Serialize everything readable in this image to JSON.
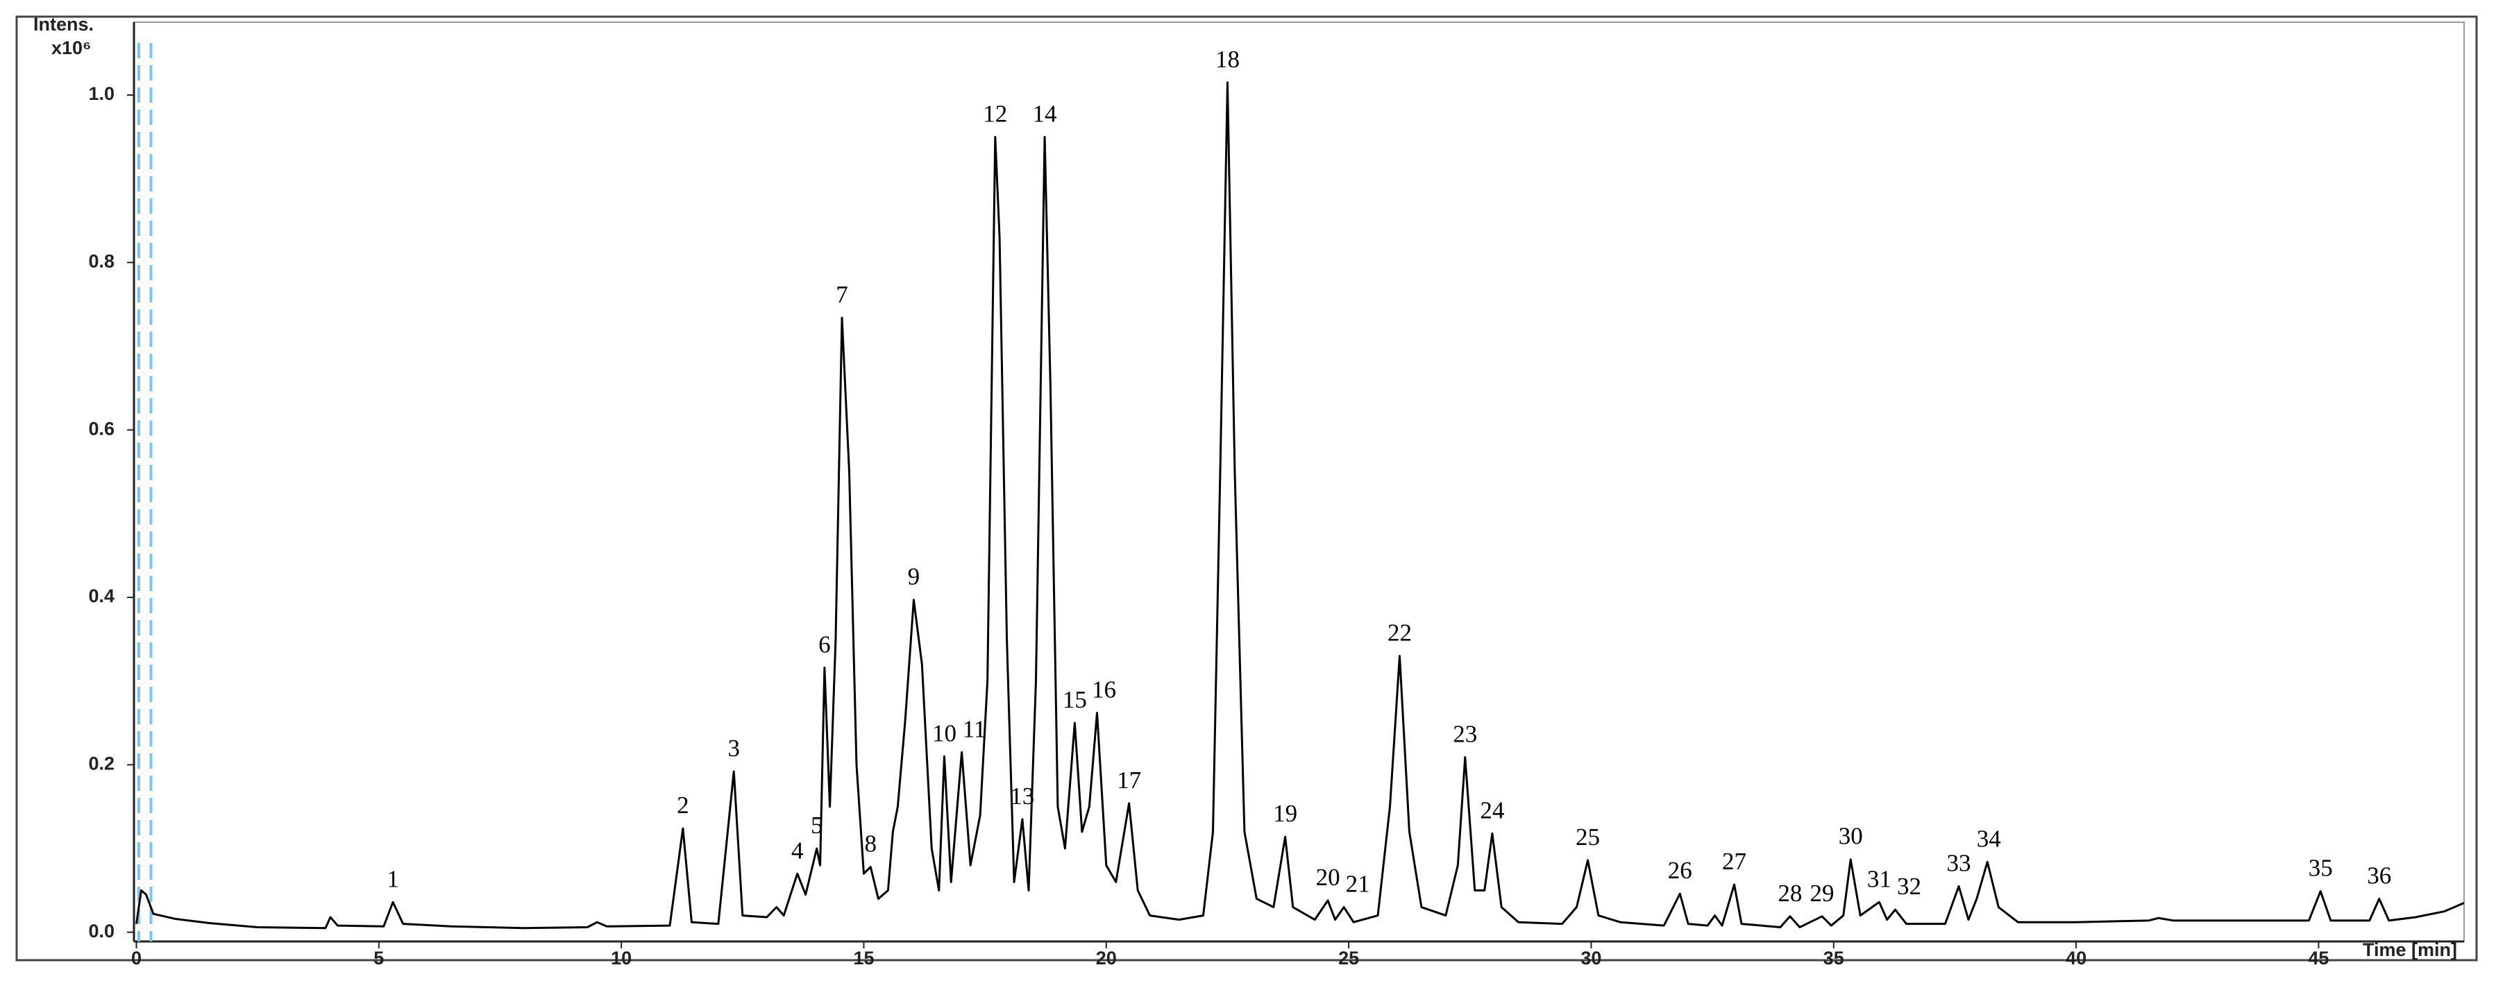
{
  "chart_data": {
    "type": "line",
    "y_label": "Intens.",
    "y_unit": "x10⁶",
    "x_label": "Time [min]",
    "color": "#000000",
    "marker_color": "#7ec4e8",
    "markers_x": [
      0.05,
      0.3
    ],
    "xlim": [
      -0.05,
      48.0
    ],
    "ylim": [
      -0.011,
      1.087
    ],
    "xticks": [
      0,
      5,
      10,
      15,
      20,
      25,
      30,
      35,
      40,
      45
    ],
    "yticks": [
      {
        "value": 0,
        "label": "0.0"
      },
      0.2,
      0.4,
      0.6,
      0.8,
      {
        "value": 1,
        "label": "1.0"
      }
    ],
    "x": [
      0,
      0.1,
      0.2,
      0.35,
      0.8,
      1.5,
      2.5,
      3.9,
      4.0,
      4.15,
      5.1,
      5.29,
      5.5,
      6.5,
      8.0,
      9.3,
      9.5,
      9.7,
      11.0,
      11.27,
      11.45,
      12.0,
      12.32,
      12.5,
      13.0,
      13.2,
      13.35,
      13.63,
      13.8,
      14.03,
      14.1,
      14.19,
      14.3,
      14.42,
      14.55,
      14.7,
      14.85,
      15.0,
      15.14,
      15.3,
      15.5,
      15.6,
      15.7,
      15.85,
      16.03,
      16.2,
      16.4,
      16.55,
      16.66,
      16.8,
      17.02,
      17.2,
      17.4,
      17.55,
      17.71,
      17.8,
      17.95,
      18.1,
      18.27,
      18.4,
      18.55,
      18.73,
      18.85,
      19.0,
      19.15,
      19.35,
      19.5,
      19.65,
      19.81,
      20.0,
      20.2,
      20.47,
      20.65,
      20.9,
      21.5,
      22.0,
      22.2,
      22.35,
      22.5,
      22.65,
      22.85,
      23.1,
      23.45,
      23.69,
      23.85,
      24.3,
      24.57,
      24.72,
      24.9,
      25.1,
      25.6,
      25.85,
      26.05,
      26.25,
      26.5,
      27.0,
      27.25,
      27.4,
      27.6,
      27.8,
      27.96,
      28.15,
      28.5,
      29.4,
      29.7,
      29.93,
      30.15,
      30.6,
      31.5,
      31.83,
      32.0,
      32.4,
      32.55,
      32.7,
      32.95,
      33.1,
      33.9,
      34.1,
      34.3,
      34.76,
      34.95,
      35.2,
      35.35,
      35.55,
      35.94,
      36.1,
      36.27,
      36.5,
      37.3,
      37.58,
      37.78,
      37.95,
      38.17,
      38.4,
      38.8,
      40.0,
      41.5,
      41.7,
      42.0,
      44.8,
      45.04,
      45.25,
      46.05,
      46.25,
      46.45,
      47.0,
      47.6,
      48.0
    ],
    "values": [
      0.01,
      0.05,
      0.045,
      0.022,
      0.016,
      0.011,
      0.006,
      0.005,
      0.018,
      0.008,
      0.007,
      0.036,
      0.01,
      0.007,
      0.005,
      0.006,
      0.012,
      0.007,
      0.008,
      0.124,
      0.012,
      0.01,
      0.192,
      0.02,
      0.018,
      0.03,
      0.02,
      0.07,
      0.045,
      0.1,
      0.08,
      0.316,
      0.15,
      0.35,
      0.734,
      0.55,
      0.2,
      0.07,
      0.078,
      0.04,
      0.05,
      0.12,
      0.15,
      0.25,
      0.397,
      0.32,
      0.1,
      0.05,
      0.21,
      0.06,
      0.215,
      0.08,
      0.14,
      0.3,
      0.95,
      0.83,
      0.35,
      0.06,
      0.135,
      0.05,
      0.3,
      0.95,
      0.65,
      0.15,
      0.1,
      0.25,
      0.12,
      0.15,
      0.262,
      0.08,
      0.06,
      0.154,
      0.05,
      0.02,
      0.015,
      0.02,
      0.12,
      0.55,
      1.015,
      0.55,
      0.12,
      0.04,
      0.03,
      0.114,
      0.03,
      0.015,
      0.038,
      0.015,
      0.03,
      0.012,
      0.02,
      0.15,
      0.33,
      0.12,
      0.03,
      0.02,
      0.08,
      0.209,
      0.05,
      0.05,
      0.118,
      0.03,
      0.012,
      0.01,
      0.03,
      0.086,
      0.02,
      0.012,
      0.008,
      0.046,
      0.01,
      0.008,
      0.02,
      0.008,
      0.057,
      0.01,
      0.006,
      0.019,
      0.006,
      0.019,
      0.008,
      0.02,
      0.087,
      0.02,
      0.036,
      0.015,
      0.027,
      0.01,
      0.01,
      0.055,
      0.015,
      0.04,
      0.084,
      0.03,
      0.012,
      0.012,
      0.014,
      0.017,
      0.014,
      0.014,
      0.049,
      0.014,
      0.014,
      0.04,
      0.014,
      0.018,
      0.025,
      0.035
    ],
    "peaks": [
      {
        "label": "1",
        "x": 5.29,
        "y": 0.036
      },
      {
        "label": "2",
        "x": 11.27,
        "y": 0.124
      },
      {
        "label": "3",
        "x": 12.32,
        "y": 0.192
      },
      {
        "label": "4",
        "x": 13.63,
        "y": 0.07
      },
      {
        "label": "5",
        "x": 14.03,
        "y": 0.1
      },
      {
        "label": "6",
        "x": 14.19,
        "y": 0.316
      },
      {
        "label": "7",
        "x": 14.55,
        "y": 0.734
      },
      {
        "label": "8",
        "x": 15.14,
        "y": 0.078
      },
      {
        "label": "9",
        "x": 16.03,
        "y": 0.397
      },
      {
        "label": "10",
        "x": 16.66,
        "y": 0.21
      },
      {
        "label": "11",
        "x": 17.02,
        "y": 0.215
      },
      {
        "label": "12",
        "x": 17.71,
        "y": 0.95
      },
      {
        "label": "13",
        "x": 18.27,
        "y": 0.135
      },
      {
        "label": "14",
        "x": 18.73,
        "y": 0.95
      },
      {
        "label": "15",
        "x": 19.35,
        "y": 0.25
      },
      {
        "label": "16",
        "x": 19.81,
        "y": 0.262
      },
      {
        "label": "17",
        "x": 20.47,
        "y": 0.154
      },
      {
        "label": "18",
        "x": 22.5,
        "y": 1.015
      },
      {
        "label": "19",
        "x": 23.69,
        "y": 0.114
      },
      {
        "label": "20",
        "x": 24.57,
        "y": 0.038
      },
      {
        "label": "21",
        "x": 24.9,
        "y": 0.03
      },
      {
        "label": "22",
        "x": 26.05,
        "y": 0.33
      },
      {
        "label": "23",
        "x": 27.4,
        "y": 0.209
      },
      {
        "label": "24",
        "x": 27.96,
        "y": 0.118
      },
      {
        "label": "25",
        "x": 29.93,
        "y": 0.086
      },
      {
        "label": "26",
        "x": 31.83,
        "y": 0.046
      },
      {
        "label": "27",
        "x": 32.95,
        "y": 0.057
      },
      {
        "label": "28",
        "x": 34.1,
        "y": 0.019
      },
      {
        "label": "29",
        "x": 34.76,
        "y": 0.019
      },
      {
        "label": "30",
        "x": 35.35,
        "y": 0.087
      },
      {
        "label": "31",
        "x": 35.94,
        "y": 0.036
      },
      {
        "label": "32",
        "x": 36.27,
        "y": 0.027
      },
      {
        "label": "33",
        "x": 37.58,
        "y": 0.055
      },
      {
        "label": "34",
        "x": 38.17,
        "y": 0.084
      },
      {
        "label": "35",
        "x": 45.04,
        "y": 0.049
      },
      {
        "label": "36",
        "x": 46.25,
        "y": 0.04
      }
    ]
  }
}
